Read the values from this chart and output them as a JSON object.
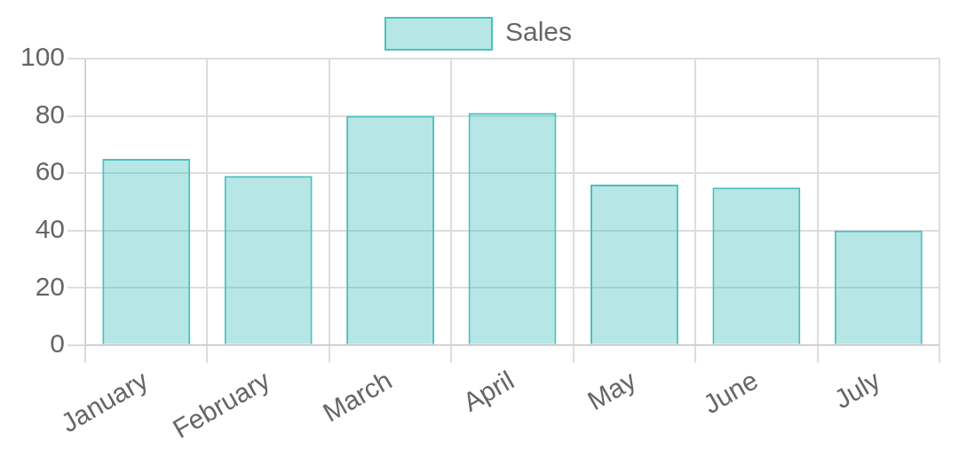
{
  "chart_data": {
    "type": "bar",
    "categories": [
      "January",
      "February",
      "March",
      "April",
      "May",
      "June",
      "July"
    ],
    "series": [
      {
        "name": "Sales",
        "color": "#4bc0c0",
        "values": [
          65,
          59,
          80,
          81,
          56,
          55,
          40
        ]
      }
    ],
    "ylim": [
      0,
      100
    ],
    "yticks": [
      0,
      20,
      40,
      60,
      80,
      100
    ],
    "grid": true,
    "legend": "top"
  }
}
